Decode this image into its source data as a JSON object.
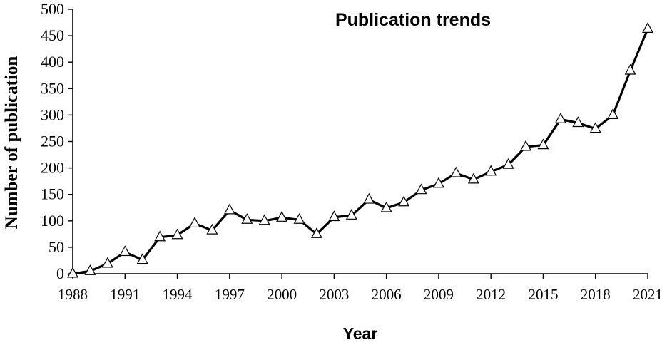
{
  "chart_data": {
    "type": "line",
    "title": "Publication trends",
    "xlabel": "Year",
    "ylabel": "Number of publication",
    "ylim": [
      0,
      500
    ],
    "yticks": [
      0,
      50,
      100,
      150,
      200,
      250,
      300,
      350,
      400,
      450,
      500
    ],
    "xticks": [
      1988,
      1991,
      1994,
      1997,
      2000,
      2003,
      2006,
      2009,
      2012,
      2015,
      2018,
      2021
    ],
    "grid": false,
    "marker": "triangle-open",
    "line_color": "#000000",
    "series": [
      {
        "x": [
          1988,
          1989,
          1990,
          1991,
          1992,
          1993,
          1994,
          1995,
          1996,
          1997,
          1998,
          1999,
          2000,
          2001,
          2002,
          2003,
          2004,
          2005,
          2006,
          2007,
          2008,
          2009,
          2010,
          2011,
          2012,
          2013,
          2014,
          2015,
          2016,
          2017,
          2018,
          2019,
          2020,
          2021
        ],
        "values": [
          0,
          5,
          19,
          41,
          26,
          69,
          73,
          95,
          82,
          120,
          102,
          100,
          106,
          102,
          75,
          107,
          110,
          140,
          124,
          135,
          158,
          170,
          190,
          178,
          193,
          206,
          240,
          243,
          292,
          285,
          274,
          300,
          384,
          463
        ]
      }
    ]
  }
}
